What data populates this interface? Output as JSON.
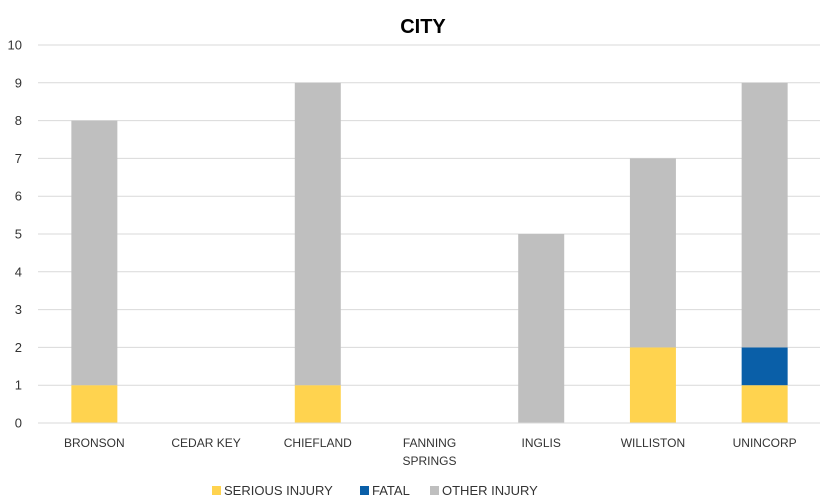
{
  "chart_data": {
    "type": "bar",
    "stacked": true,
    "title": "CITY",
    "xlabel": "",
    "ylabel": "",
    "ylim": [
      0,
      10
    ],
    "yticks": [
      0,
      1,
      2,
      3,
      4,
      5,
      6,
      7,
      8,
      9,
      10
    ],
    "grid": true,
    "legend_position": "bottom",
    "categories": [
      [
        "BRONSON"
      ],
      [
        "CEDAR KEY"
      ],
      [
        "CHIEFLAND"
      ],
      [
        "FANNING",
        "SPRINGS"
      ],
      [
        "INGLIS"
      ],
      [
        "WILLISTON"
      ],
      [
        "UNINCORP"
      ]
    ],
    "series": [
      {
        "name": "SERIOUS INJURY",
        "color": "#FFD34F",
        "values": [
          1,
          0,
          1,
          0,
          0,
          2,
          1
        ]
      },
      {
        "name": "FATAL",
        "color": "#0A5FA8",
        "values": [
          0,
          0,
          0,
          0,
          0,
          0,
          1
        ]
      },
      {
        "name": "OTHER INJURY",
        "color": "#BFBFBF",
        "values": [
          7,
          0,
          8,
          0,
          5,
          5,
          7
        ]
      }
    ]
  }
}
